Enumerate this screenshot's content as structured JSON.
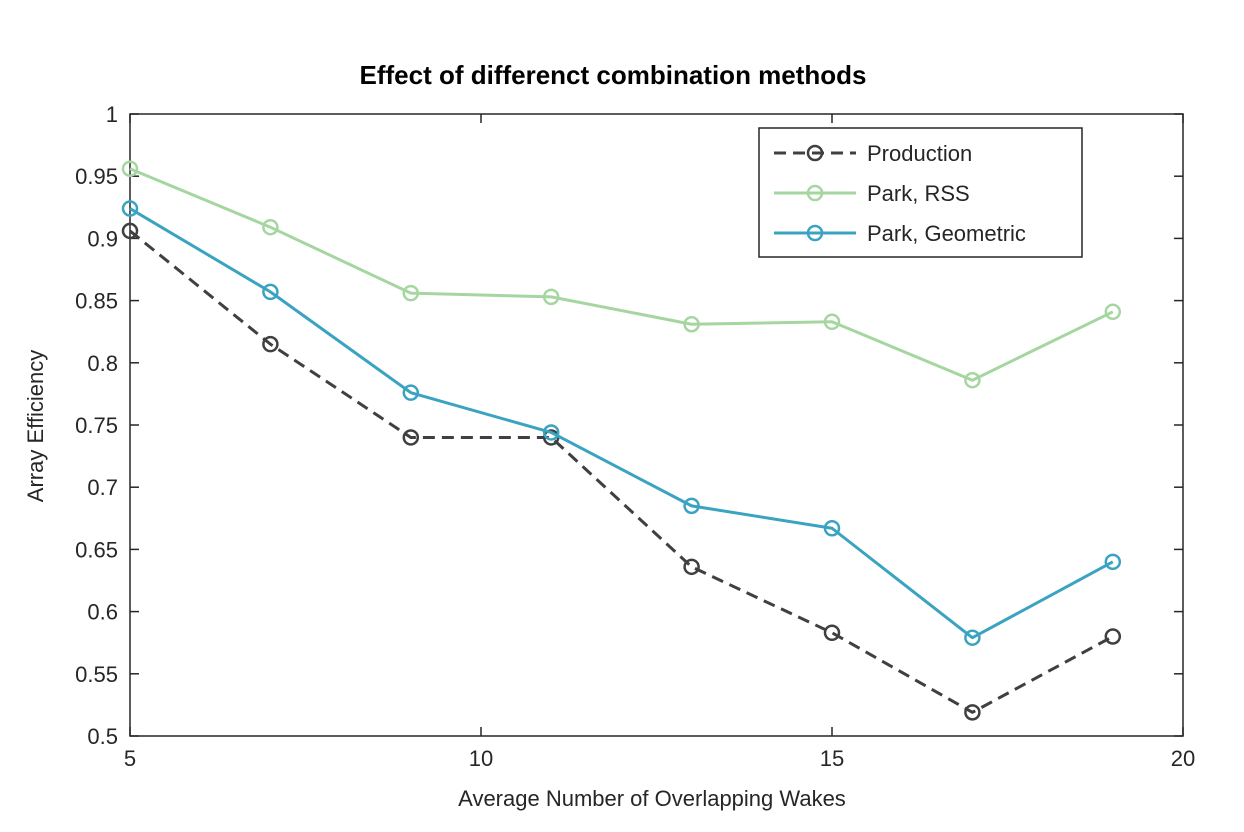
{
  "chart_data": {
    "type": "line",
    "title": "Effect of differenct combination methods",
    "xlabel": "Average Number of Overlapping Wakes",
    "ylabel": "Array Efficiency",
    "xlim": [
      5,
      20
    ],
    "ylim": [
      0.5,
      1
    ],
    "xticks": [
      5,
      10,
      15,
      20
    ],
    "yticks": [
      0.5,
      0.55,
      0.6,
      0.65,
      0.7,
      0.75,
      0.8,
      0.85,
      0.9,
      0.95,
      1
    ],
    "xtick_labels": [
      "5",
      "10",
      "15",
      "20"
    ],
    "ytick_labels": [
      "0.5",
      "0.55",
      "0.6",
      "0.65",
      "0.7",
      "0.75",
      "0.8",
      "0.85",
      "0.9",
      "0.95",
      "1"
    ],
    "grid": false,
    "legend_position": "top-right",
    "x": [
      5,
      7,
      9,
      11,
      13,
      15,
      17,
      19
    ],
    "series": [
      {
        "name": "Production",
        "color": "#404040",
        "dash": "dashed",
        "marker": "circle",
        "values": [
          0.906,
          0.815,
          0.74,
          0.74,
          0.636,
          0.583,
          0.519,
          0.58
        ]
      },
      {
        "name": "Park, RSS",
        "color": "#a6d6a0",
        "dash": "solid",
        "marker": "circle",
        "values": [
          0.956,
          0.909,
          0.856,
          0.853,
          0.831,
          0.833,
          0.786,
          0.841
        ]
      },
      {
        "name": "Park, Geometric",
        "color": "#3aa3c2",
        "dash": "solid",
        "marker": "circle",
        "values": [
          0.924,
          0.857,
          0.776,
          0.744,
          0.685,
          0.667,
          0.579,
          0.64
        ]
      }
    ]
  }
}
